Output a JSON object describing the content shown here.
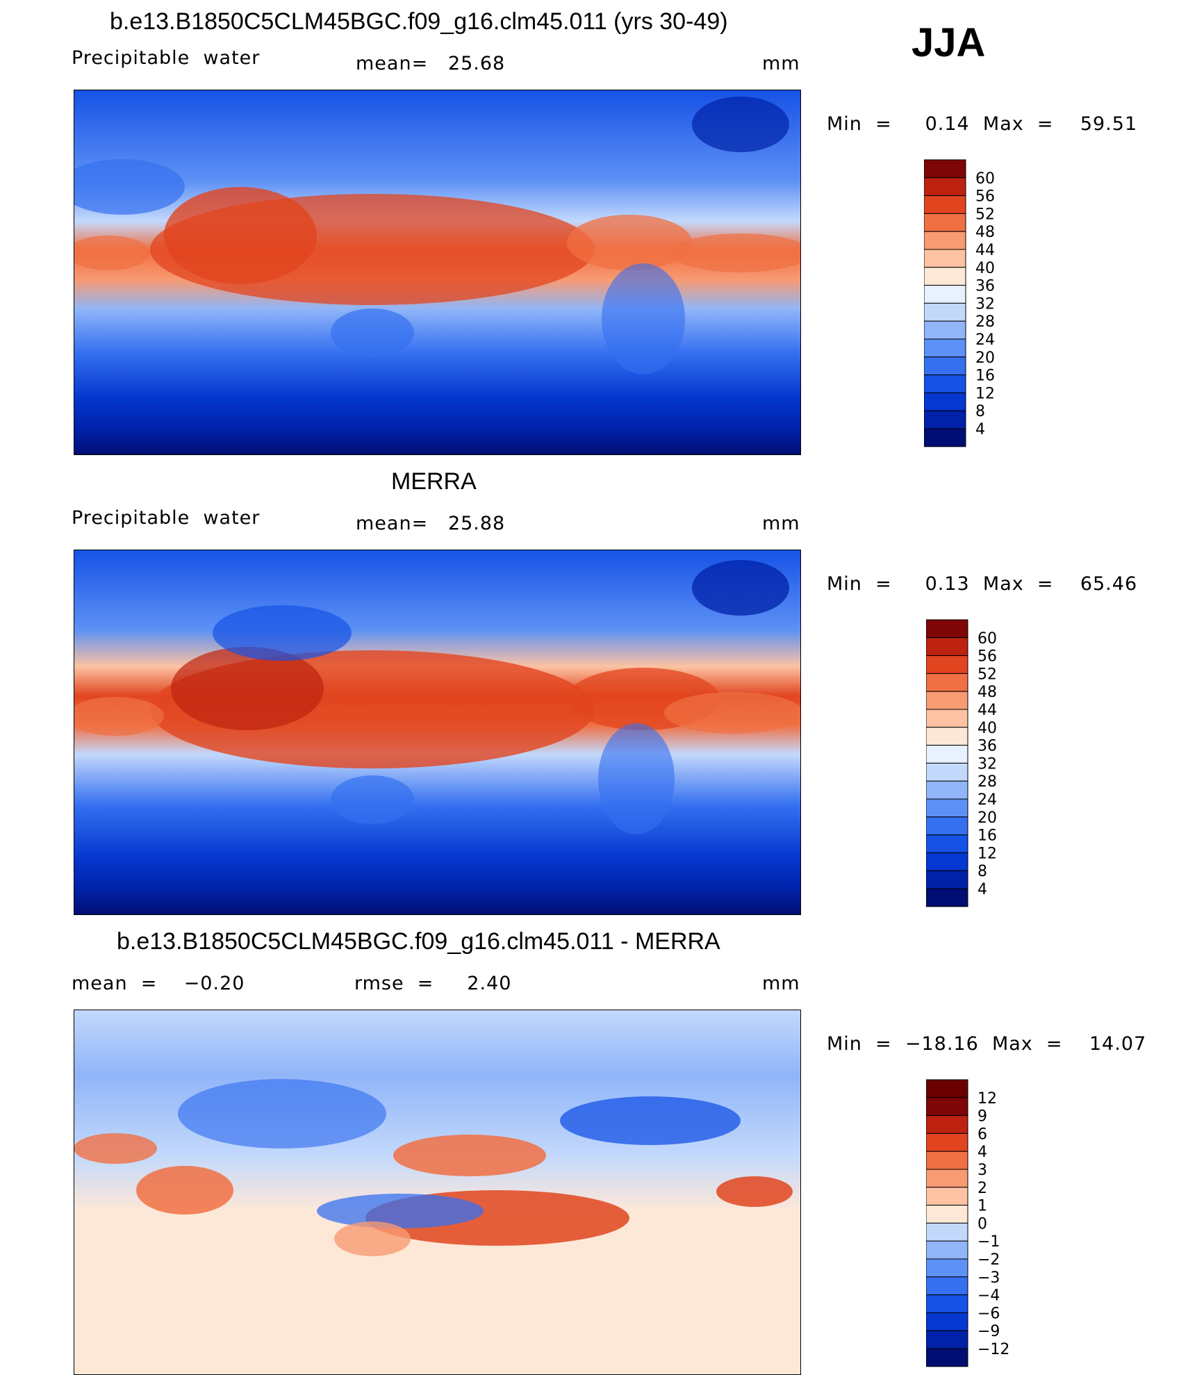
{
  "season": "JJA",
  "panels": [
    {
      "id": "model",
      "title": "b.e13.B1850C5CLM45BGC.f09_g16.clm45.011 (yrs 30-49)",
      "left_label": "Precipitable  water",
      "center_label": "mean=   25.68",
      "units": "mm",
      "minmax_label": "Min  =     0.14  Max  =    59.51"
    },
    {
      "id": "obs",
      "title": "MERRA",
      "left_label": "Precipitable  water",
      "center_label": "mean=   25.88",
      "units": "mm",
      "minmax_label": "Min  =     0.13  Max  =    65.46"
    },
    {
      "id": "diff",
      "title": "b.e13.B1850C5CLM45BGC.f09_g16.clm45.011 - MERRA",
      "left_label": "mean  =    −0.20",
      "center_label": "rmse  =     2.40",
      "units": "mm",
      "minmax_label": "Min  =  −18.16  Max  =    14.07"
    }
  ],
  "chart_data": [
    {
      "type": "heatmap",
      "title": "b.e13.B1850C5CLM45BGC.f09_g16.clm45.011 (yrs 30-49)",
      "variable": "Precipitable water",
      "units": "mm",
      "mean": 25.68,
      "min": 0.14,
      "max": 59.51,
      "colorbar": {
        "levels": [
          4,
          8,
          12,
          16,
          20,
          24,
          28,
          32,
          36,
          40,
          44,
          48,
          52,
          56,
          60
        ],
        "colors": [
          "#000e73",
          "#0022a8",
          "#0538d0",
          "#1652e6",
          "#3570f0",
          "#5e91f5",
          "#90b5f8",
          "#c3d9fc",
          "#e8f1fd",
          "#fde8d8",
          "#fcc2a2",
          "#f89a72",
          "#f07043",
          "#e1451f",
          "#bd2310",
          "#7e0607"
        ]
      }
    },
    {
      "type": "heatmap",
      "title": "MERRA",
      "variable": "Precipitable water",
      "units": "mm",
      "mean": 25.88,
      "min": 0.13,
      "max": 65.46,
      "colorbar": {
        "levels": [
          4,
          8,
          12,
          16,
          20,
          24,
          28,
          32,
          36,
          40,
          44,
          48,
          52,
          56,
          60
        ],
        "colors": [
          "#000e73",
          "#0022a8",
          "#0538d0",
          "#1652e6",
          "#3570f0",
          "#5e91f5",
          "#90b5f8",
          "#c3d9fc",
          "#e8f1fd",
          "#fde8d8",
          "#fcc2a2",
          "#f89a72",
          "#f07043",
          "#e1451f",
          "#bd2310",
          "#7e0607"
        ]
      }
    },
    {
      "type": "heatmap",
      "title": "b.e13.B1850C5CLM45BGC.f09_g16.clm45.011 - MERRA",
      "units": "mm",
      "mean": -0.2,
      "rmse": 2.4,
      "min": -18.16,
      "max": 14.07,
      "colorbar": {
        "levels": [
          "−12",
          "−9",
          "−6",
          "−4",
          "−3",
          "−2",
          "−1",
          "0",
          "1",
          "2",
          "3",
          "4",
          "6",
          "9",
          "12"
        ],
        "colors": [
          "#000e73",
          "#0022a8",
          "#0538d0",
          "#1652e6",
          "#3570f0",
          "#5e91f5",
          "#90b5f8",
          "#c3d9fc",
          "#fde8d8",
          "#fcc2a2",
          "#f89a72",
          "#f07043",
          "#e1451f",
          "#bd2310",
          "#7e0607",
          "#6a0000"
        ]
      }
    }
  ]
}
